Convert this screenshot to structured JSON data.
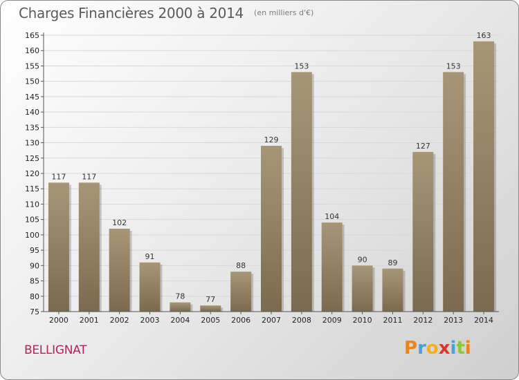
{
  "header": {
    "title": "Charges Financières 2000 à 2014",
    "subtitle": "(en milliers d'€)"
  },
  "footer": {
    "commune": "BELLIGNAT",
    "logo_text": "Proxiti"
  },
  "colors": {
    "bar_top": "#a79676",
    "bar_bottom": "#7c6a50",
    "commune_text": "#b0245c",
    "logo_letters": [
      "#e8851c",
      "#4aa0d8",
      "#f2b21c",
      "#e2332b",
      "#4aa0d8",
      "#8dc63f",
      "#e8851c"
    ]
  },
  "chart_data": {
    "type": "bar",
    "title": "Charges Financières 2000 à 2014",
    "subtitle": "(en milliers d'€)",
    "xlabel": "",
    "ylabel": "",
    "categories": [
      "2000",
      "2001",
      "2002",
      "2003",
      "2004",
      "2005",
      "2006",
      "2007",
      "2008",
      "2009",
      "2010",
      "2011",
      "2012",
      "2013",
      "2014"
    ],
    "values": [
      117,
      117,
      102,
      91,
      78,
      77,
      88,
      129,
      153,
      104,
      90,
      89,
      127,
      153,
      163
    ],
    "ylim": [
      75,
      165
    ],
    "yticks": [
      75,
      80,
      85,
      90,
      95,
      100,
      105,
      110,
      115,
      120,
      125,
      130,
      135,
      140,
      145,
      150,
      155,
      160,
      165
    ],
    "grid": true,
    "legend": "none"
  }
}
